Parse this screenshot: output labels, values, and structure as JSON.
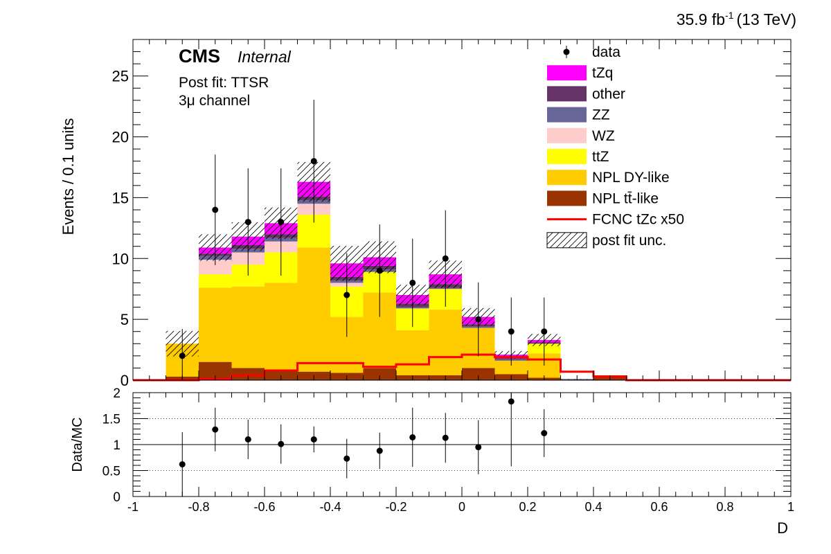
{
  "header": {
    "lumi_main": "35.9 fb",
    "lumi_sup": "-1",
    "lumi_energy": "(13 TeV)"
  },
  "labels": {
    "cms": "CMS",
    "internal": "Internal",
    "postfit": "Post fit: TTSR",
    "channel": "3μ channel"
  },
  "colors": {
    "tzq": "#ff00ff",
    "other": "#663366",
    "zz": "#666699",
    "wz": "#ffcccc",
    "ttz": "#ffff00",
    "npl_dy": "#ffcc00",
    "npl_tt": "#993300",
    "fcnc": "#ff0000",
    "data": "#000000"
  },
  "chart_data": [
    {
      "type": "bar",
      "stacked": true,
      "ylabel": "Events / 0.1 units",
      "xlim": [
        -1,
        1
      ],
      "ylim": [
        0,
        28
      ],
      "y_ticks": [
        0,
        5,
        10,
        15,
        20,
        25
      ],
      "bin_edges": [
        -1.0,
        -0.9,
        -0.8,
        -0.7,
        -0.6,
        -0.5,
        -0.4,
        -0.3,
        -0.2,
        -0.1,
        0.0,
        0.1,
        0.2,
        0.3,
        0.4,
        0.5,
        0.6,
        0.7,
        0.8,
        0.9,
        1.0
      ],
      "series": [
        {
          "name": "NPL tt̄-like",
          "key": "npl_tt",
          "values": [
            0,
            0.3,
            1.5,
            1.0,
            0.8,
            0.7,
            0.6,
            1.0,
            0.4,
            0.4,
            1.0,
            0.5,
            0.2,
            0,
            0.4,
            0,
            0,
            0,
            0,
            0
          ]
        },
        {
          "name": "NPL DY-like",
          "key": "npl_dy",
          "values": [
            0,
            2.7,
            6.1,
            6.7,
            7.2,
            10.2,
            4.6,
            6.2,
            3.7,
            5.4,
            3.3,
            1.1,
            2.0,
            0,
            0,
            0,
            0,
            0,
            0,
            0
          ]
        },
        {
          "name": "ttZ",
          "key": "ttz",
          "values": [
            0,
            0,
            1.1,
            1.8,
            2.5,
            2.7,
            2.5,
            1.7,
            1.8,
            1.7,
            0,
            0,
            0.8,
            0,
            0,
            0,
            0,
            0,
            0,
            0
          ]
        },
        {
          "name": "WZ",
          "key": "wz",
          "values": [
            0,
            0,
            1.2,
            1.0,
            0.9,
            0.9,
            0.3,
            0,
            0,
            0,
            0,
            0,
            0,
            0,
            0,
            0,
            0,
            0,
            0,
            0
          ]
        },
        {
          "name": "ZZ",
          "key": "zz",
          "values": [
            0,
            0,
            0.3,
            0.3,
            0.3,
            0.3,
            0.2,
            0.2,
            0.1,
            0.1,
            0.1,
            0.1,
            0,
            0.1,
            0,
            0,
            0,
            0,
            0,
            0
          ]
        },
        {
          "name": "other",
          "key": "other",
          "values": [
            0,
            0,
            0.2,
            0.3,
            0.3,
            0.3,
            0.3,
            0.3,
            0.3,
            0.3,
            0.2,
            0.1,
            0.1,
            0,
            0,
            0,
            0,
            0,
            0,
            0
          ]
        },
        {
          "name": "tZq",
          "key": "tzq",
          "values": [
            0,
            0,
            0.5,
            0.7,
            0.9,
            1.2,
            1.1,
            0.7,
            0.7,
            0.8,
            0.6,
            0.3,
            0.2,
            0,
            0,
            0,
            0,
            0,
            0,
            0
          ]
        }
      ],
      "fcnc": {
        "name": "FCNC tZc x50",
        "key": "fcnc",
        "values": [
          0,
          0,
          0.1,
          0.4,
          0.8,
          1.4,
          1.4,
          1.1,
          1.3,
          1.9,
          2.1,
          1.9,
          1.7,
          0.7,
          0.3,
          0,
          0,
          0,
          0,
          0
        ]
      },
      "unc": {
        "name": "post fit unc.",
        "bins": [
          1,
          2,
          3,
          4,
          5,
          6,
          7,
          8,
          9,
          10,
          11,
          12,
          13
        ],
        "frac": [
          0.35,
          0.1,
          0.1,
          0.1,
          0.1,
          0.15,
          0.13,
          0.12,
          0.13,
          0.14,
          0.14,
          0.15,
          0.12
        ]
      },
      "data": {
        "name": "data",
        "x": [
          -0.85,
          -0.75,
          -0.65,
          -0.55,
          -0.45,
          -0.35,
          -0.25,
          -0.15,
          -0.05,
          0.05,
          0.15,
          0.25
        ],
        "y": [
          2,
          14,
          13,
          13,
          18,
          7,
          9,
          8,
          10,
          5,
          4,
          4
        ]
      }
    },
    {
      "type": "scatter",
      "xlabel": "D",
      "ylabel": "Data/MC",
      "xlim": [
        -1,
        1
      ],
      "ylim": [
        0,
        2
      ],
      "x_ticks": [
        -1,
        -0.8,
        -0.6,
        -0.4,
        -0.2,
        0,
        0.2,
        0.4,
        0.6,
        0.8,
        1
      ],
      "x_tick_labels": [
        "-1",
        "-0.8",
        "-0.6",
        "-0.4",
        "-0.2",
        "0",
        "0.2",
        "0.4",
        "0.6",
        "0.8",
        "1"
      ],
      "y_ticks": [
        0,
        0.5,
        1,
        1.5,
        2
      ],
      "y_tick_labels": [
        "0",
        "0.5",
        "1",
        "1.5",
        "2"
      ],
      "points": {
        "x": [
          -0.85,
          -0.75,
          -0.65,
          -0.55,
          -0.45,
          -0.35,
          -0.25,
          -0.15,
          -0.05,
          0.05,
          0.15,
          0.25
        ],
        "y": [
          0.62,
          1.29,
          1.1,
          1.01,
          1.1,
          0.73,
          0.88,
          1.14,
          1.13,
          0.95,
          1.83,
          1.22
        ],
        "err": [
          0.62,
          0.42,
          0.38,
          0.38,
          0.25,
          0.38,
          0.35,
          0.57,
          0.48,
          0.52,
          1.25,
          0.46
        ]
      }
    }
  ]
}
